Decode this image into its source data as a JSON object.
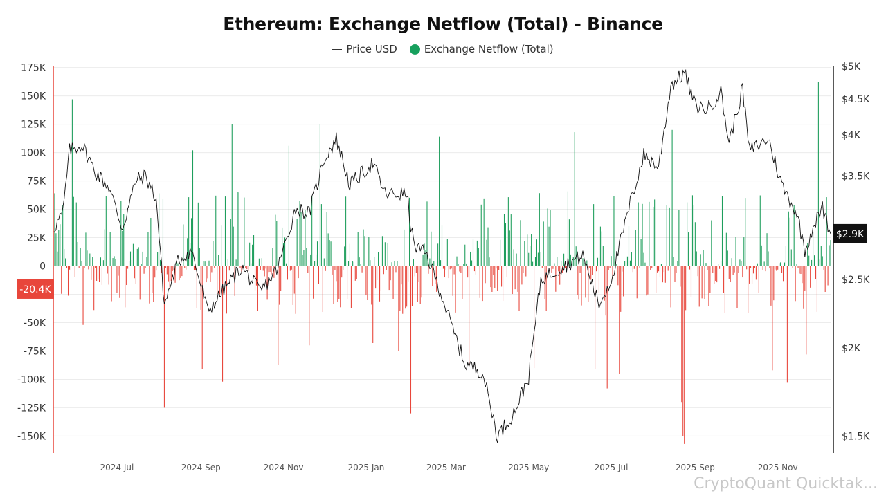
{
  "chart_data": {
    "type": "bar",
    "title": "Ethereum: Exchange Netflow (Total) - Binance",
    "legend": [
      {
        "name": "Price USD",
        "marker": "line",
        "color": "#333333"
      },
      {
        "name": "Exchange Netflow (Total)",
        "marker": "dot",
        "color": "#17a05d"
      }
    ],
    "legend_placement": "top-center",
    "grid": "horizontal",
    "colors": {
      "positive": "#1e9e5c",
      "negative": "#e8463b",
      "price_line": "#111111",
      "left_axis": "#e8463b",
      "right_axis": "#222222",
      "badge_negative": "#e8463b",
      "badge_price": "#111111"
    },
    "y_left": {
      "ylim": [
        -165000,
        176000
      ],
      "ticks": [
        175000,
        150000,
        125000,
        100000,
        75000,
        50000,
        25000,
        0,
        -25000,
        -50000,
        -75000,
        -100000,
        -125000,
        -150000
      ],
      "tick_labels": [
        "175K",
        "150K",
        "125K",
        "100K",
        "75K",
        "50K",
        "25K",
        "0",
        "-25K",
        "-50K",
        "-75K",
        "-100K",
        "-125K",
        "-150K"
      ],
      "last_value_label": "-20.4K",
      "last_value": -20400
    },
    "y_right": {
      "scale": "log",
      "ylim": [
        1420,
        5000
      ],
      "ticks": [
        5000,
        4500,
        4000,
        3500,
        2500,
        2000,
        1500
      ],
      "tick_labels": [
        "$5K",
        "$4.5K",
        "$4K",
        "$3.5K",
        "$2.5K",
        "$2K",
        "$1.5K"
      ],
      "last_value_label": "$2.9K",
      "last_value": 2900
    },
    "x_axis": {
      "start": "2024-05-15",
      "end": "2025-12-10",
      "ticks": [
        "2024-07-01",
        "2024-09-01",
        "2024-11-01",
        "2025-01-01",
        "2025-03-01",
        "2025-05-01",
        "2025-07-01",
        "2025-09-01",
        "2025-11-01"
      ],
      "tick_labels": [
        "2024 Jul",
        "2024 Sep",
        "2024 Nov",
        "2025 Jan",
        "2025 Mar",
        "2025 May",
        "2025 Jul",
        "2025 Sep",
        "2025 Nov"
      ]
    },
    "netflow_spikes": [
      {
        "date": "2024-05-29",
        "value": 147000
      },
      {
        "date": "2024-06-06",
        "value": -52000
      },
      {
        "date": "2024-08-05",
        "value": -125000
      },
      {
        "date": "2024-08-26",
        "value": 102000
      },
      {
        "date": "2024-09-02",
        "value": -91000
      },
      {
        "date": "2024-09-17",
        "value": -102000
      },
      {
        "date": "2024-09-24",
        "value": 125000
      },
      {
        "date": "2024-11-05",
        "value": 106000
      },
      {
        "date": "2024-10-28",
        "value": -87000
      },
      {
        "date": "2024-11-20",
        "value": -70000
      },
      {
        "date": "2024-11-28",
        "value": 125000
      },
      {
        "date": "2025-01-06",
        "value": -68000
      },
      {
        "date": "2025-01-25",
        "value": -75000
      },
      {
        "date": "2025-02-03",
        "value": -130000
      },
      {
        "date": "2025-02-24",
        "value": 114000
      },
      {
        "date": "2025-03-18",
        "value": -88000
      },
      {
        "date": "2025-05-05",
        "value": -90000
      },
      {
        "date": "2025-06-04",
        "value": 118000
      },
      {
        "date": "2025-06-19",
        "value": -91000
      },
      {
        "date": "2025-06-28",
        "value": -108000
      },
      {
        "date": "2025-07-07",
        "value": -95000
      },
      {
        "date": "2025-08-15",
        "value": 120000
      },
      {
        "date": "2025-08-22",
        "value": -120000
      },
      {
        "date": "2025-08-23",
        "value": -150000
      },
      {
        "date": "2025-08-24",
        "value": -157000
      },
      {
        "date": "2025-10-28",
        "value": -92000
      },
      {
        "date": "2025-11-08",
        "value": -103000
      },
      {
        "date": "2025-11-22",
        "value": -78000
      },
      {
        "date": "2025-12-01",
        "value": 162000
      }
    ],
    "price_path": [
      {
        "date": "2024-05-15",
        "price": 2950
      },
      {
        "date": "2024-05-22",
        "price": 3100
      },
      {
        "date": "2024-05-27",
        "price": 3800
      },
      {
        "date": "2024-06-05",
        "price": 3880
      },
      {
        "date": "2024-06-15",
        "price": 3550
      },
      {
        "date": "2024-06-25",
        "price": 3380
      },
      {
        "date": "2024-07-05",
        "price": 2950
      },
      {
        "date": "2024-07-15",
        "price": 3450
      },
      {
        "date": "2024-07-22",
        "price": 3500
      },
      {
        "date": "2024-07-30",
        "price": 3250
      },
      {
        "date": "2024-08-05",
        "price": 2300
      },
      {
        "date": "2024-08-15",
        "price": 2650
      },
      {
        "date": "2024-08-25",
        "price": 2750
      },
      {
        "date": "2024-09-06",
        "price": 2250
      },
      {
        "date": "2024-09-20",
        "price": 2450
      },
      {
        "date": "2024-10-01",
        "price": 2600
      },
      {
        "date": "2024-10-15",
        "price": 2400
      },
      {
        "date": "2024-10-28",
        "price": 2600
      },
      {
        "date": "2024-11-10",
        "price": 3150
      },
      {
        "date": "2024-11-20",
        "price": 3100
      },
      {
        "date": "2024-12-01",
        "price": 3700
      },
      {
        "date": "2024-12-10",
        "price": 3950
      },
      {
        "date": "2024-12-20",
        "price": 3400
      },
      {
        "date": "2025-01-06",
        "price": 3650
      },
      {
        "date": "2025-01-15",
        "price": 3300
      },
      {
        "date": "2025-01-31",
        "price": 3300
      },
      {
        "date": "2025-02-05",
        "price": 2800
      },
      {
        "date": "2025-02-15",
        "price": 2700
      },
      {
        "date": "2025-02-25",
        "price": 2400
      },
      {
        "date": "2025-03-05",
        "price": 2150
      },
      {
        "date": "2025-03-15",
        "price": 1900
      },
      {
        "date": "2025-03-28",
        "price": 1850
      },
      {
        "date": "2025-04-08",
        "price": 1500
      },
      {
        "date": "2025-04-20",
        "price": 1620
      },
      {
        "date": "2025-05-01",
        "price": 1820
      },
      {
        "date": "2025-05-10",
        "price": 2500
      },
      {
        "date": "2025-05-25",
        "price": 2600
      },
      {
        "date": "2025-06-10",
        "price": 2700
      },
      {
        "date": "2025-06-22",
        "price": 2300
      },
      {
        "date": "2025-07-01",
        "price": 2500
      },
      {
        "date": "2025-07-15",
        "price": 3200
      },
      {
        "date": "2025-07-25",
        "price": 3750
      },
      {
        "date": "2025-08-05",
        "price": 3600
      },
      {
        "date": "2025-08-14",
        "price": 4700
      },
      {
        "date": "2025-08-24",
        "price": 4900
      },
      {
        "date": "2025-09-01",
        "price": 4400
      },
      {
        "date": "2025-09-10",
        "price": 4350
      },
      {
        "date": "2025-09-20",
        "price": 4600
      },
      {
        "date": "2025-09-26",
        "price": 3900
      },
      {
        "date": "2025-10-06",
        "price": 4650
      },
      {
        "date": "2025-10-11",
        "price": 3800
      },
      {
        "date": "2025-10-25",
        "price": 3950
      },
      {
        "date": "2025-11-04",
        "price": 3400
      },
      {
        "date": "2025-11-15",
        "price": 3100
      },
      {
        "date": "2025-11-21",
        "price": 2750
      },
      {
        "date": "2025-11-28",
        "price": 3000
      },
      {
        "date": "2025-12-04",
        "price": 3150
      },
      {
        "date": "2025-12-10",
        "price": 2900
      }
    ]
  },
  "watermark": "CryptoQuant Quicktak..."
}
